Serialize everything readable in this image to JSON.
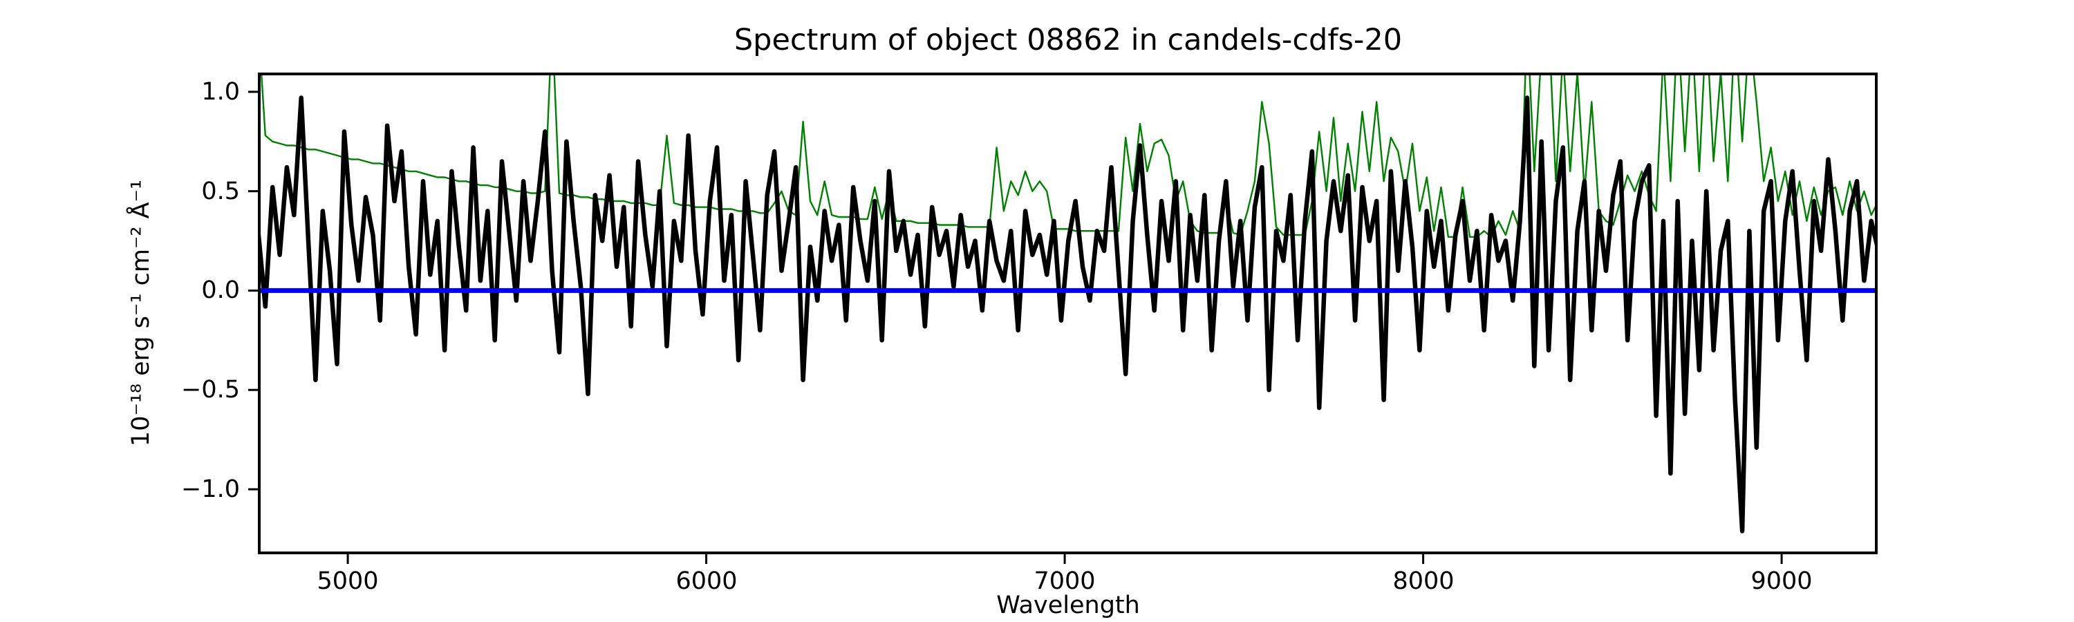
{
  "chart_data": {
    "type": "line",
    "title": "Spectrum of object 08862 in candels-cdfs-20",
    "xlabel": "Wavelength",
    "ylabel": "10⁻¹⁸ erg s⁻¹ cm⁻² Å⁻¹",
    "xlim": [
      4753,
      9264
    ],
    "ylim": [
      -1.32,
      1.09
    ],
    "grid": false,
    "legend": null,
    "xticks": {
      "values": [
        5000,
        6000,
        7000,
        8000,
        9000
      ],
      "labels": [
        "5000",
        "6000",
        "7000",
        "8000",
        "9000"
      ]
    },
    "yticks": {
      "values": [
        1.0,
        0.5,
        0.0,
        -0.5,
        -1.0
      ],
      "labels": [
        "1.0",
        "0.5",
        "0.0",
        "−0.5",
        "−1.0"
      ]
    },
    "x_start": 4750,
    "x_step": 20,
    "series": [
      {
        "name": "flux",
        "type": "line",
        "color": "#000000",
        "linewidth": 6.5,
        "values": [
          0.3,
          -0.08,
          0.52,
          0.18,
          0.62,
          0.38,
          0.97,
          0.25,
          -0.45,
          0.4,
          0.1,
          -0.37,
          0.8,
          0.33,
          0.05,
          0.47,
          0.28,
          -0.15,
          0.83,
          0.45,
          0.7,
          0.12,
          -0.22,
          0.55,
          0.08,
          0.35,
          -0.3,
          0.6,
          0.22,
          -0.1,
          0.72,
          0.05,
          0.4,
          -0.25,
          0.65,
          0.3,
          -0.05,
          0.55,
          0.15,
          0.45,
          0.8,
          0.1,
          -0.31,
          0.75,
          0.35,
          0.02,
          -0.52,
          0.48,
          0.25,
          0.58,
          0.12,
          0.42,
          -0.18,
          0.65,
          0.28,
          0.02,
          0.5,
          -0.28,
          0.35,
          0.15,
          0.78,
          0.2,
          -0.12,
          0.45,
          0.72,
          0.05,
          0.38,
          -0.35,
          0.55,
          0.18,
          -0.2,
          0.48,
          0.7,
          0.1,
          0.35,
          0.62,
          -0.45,
          0.22,
          -0.05,
          0.4,
          0.15,
          0.33,
          -0.15,
          0.52,
          0.25,
          0.05,
          0.45,
          -0.25,
          0.6,
          0.2,
          0.35,
          0.08,
          0.28,
          -0.18,
          0.42,
          0.18,
          0.3,
          0.02,
          0.38,
          0.12,
          0.25,
          -0.1,
          0.35,
          0.15,
          0.05,
          0.3,
          -0.2,
          0.4,
          0.18,
          0.28,
          0.08,
          0.35,
          -0.15,
          0.25,
          0.45,
          0.12,
          -0.05,
          0.3,
          0.2,
          0.62,
          0.1,
          -0.42,
          0.35,
          0.73,
          0.28,
          -0.1,
          0.45,
          0.15,
          0.55,
          -0.2,
          0.38,
          0.05,
          0.48,
          -0.3,
          0.25,
          0.55,
          0.02,
          0.35,
          -0.15,
          0.42,
          0.62,
          -0.5,
          0.3,
          0.15,
          0.48,
          -0.25,
          0.35,
          0.7,
          -0.59,
          0.25,
          0.55,
          0.3,
          0.58,
          -0.15,
          0.52,
          0.25,
          0.45,
          -0.55,
          0.6,
          0.1,
          0.55,
          0.22,
          -0.3,
          0.4,
          0.12,
          0.35,
          -0.1,
          0.28,
          0.45,
          0.05,
          0.3,
          -0.2,
          0.38,
          0.15,
          0.25,
          -0.05,
          0.35,
          0.97,
          -0.38,
          0.75,
          -0.3,
          0.45,
          0.72,
          -0.45,
          0.3,
          0.55,
          -0.2,
          0.4,
          0.1,
          0.48,
          0.65,
          -0.25,
          0.35,
          0.55,
          0.63,
          -0.63,
          0.35,
          -0.92,
          0.45,
          -0.62,
          0.25,
          -0.4,
          0.5,
          -0.3,
          0.2,
          0.35,
          -0.55,
          -1.21,
          0.3,
          -0.79,
          0.4,
          0.55,
          -0.25,
          0.35,
          0.6,
          0.1,
          -0.35,
          0.45,
          0.2,
          0.66,
          0.3,
          -0.15,
          0.4,
          0.55,
          0.05,
          0.35,
          0.2
        ]
      },
      {
        "name": "error",
        "type": "line",
        "color": "#008000",
        "linewidth": 2.4,
        "values": [
          1.35,
          0.78,
          0.75,
          0.74,
          0.73,
          0.73,
          0.72,
          0.71,
          0.71,
          0.7,
          0.69,
          0.68,
          0.67,
          0.66,
          0.66,
          0.65,
          0.64,
          0.64,
          0.63,
          0.62,
          0.61,
          0.6,
          0.6,
          0.59,
          0.58,
          0.57,
          0.57,
          0.56,
          0.55,
          0.55,
          0.54,
          0.53,
          0.53,
          0.52,
          0.52,
          0.51,
          0.5,
          0.5,
          0.49,
          0.49,
          0.5,
          1.35,
          0.49,
          0.48,
          0.48,
          0.47,
          0.47,
          0.46,
          0.46,
          0.45,
          0.45,
          0.45,
          0.44,
          0.44,
          0.44,
          0.43,
          0.43,
          0.78,
          0.44,
          0.43,
          0.43,
          0.42,
          0.42,
          0.42,
          0.41,
          0.41,
          0.41,
          0.4,
          0.4,
          0.4,
          0.39,
          0.39,
          0.44,
          0.5,
          0.4,
          0.38,
          0.85,
          0.45,
          0.38,
          0.55,
          0.38,
          0.37,
          0.37,
          0.37,
          0.36,
          0.36,
          0.52,
          0.36,
          0.5,
          0.35,
          0.35,
          0.35,
          0.34,
          0.34,
          0.34,
          0.33,
          0.33,
          0.33,
          0.33,
          0.32,
          0.32,
          0.32,
          0.32,
          0.72,
          0.4,
          0.55,
          0.48,
          0.6,
          0.5,
          0.55,
          0.5,
          0.31,
          0.31,
          0.31,
          0.3,
          0.3,
          0.3,
          0.3,
          0.3,
          0.3,
          0.3,
          0.77,
          0.5,
          0.84,
          0.6,
          0.74,
          0.76,
          0.68,
          0.45,
          0.55,
          0.35,
          0.3,
          0.29,
          0.29,
          0.29,
          0.45,
          0.29,
          0.28,
          0.4,
          0.55,
          0.95,
          0.74,
          0.32,
          0.28,
          0.28,
          0.28,
          0.28,
          0.45,
          0.8,
          0.5,
          0.87,
          0.45,
          0.74,
          0.5,
          0.9,
          0.6,
          0.95,
          0.55,
          0.77,
          0.7,
          0.5,
          0.74,
          0.4,
          0.57,
          0.3,
          0.52,
          0.27,
          0.27,
          0.52,
          0.27,
          0.27,
          0.3,
          0.27,
          0.35,
          0.28,
          0.4,
          0.3,
          1.35,
          0.6,
          1.2,
          1.35,
          0.55,
          1.2,
          0.6,
          1.1,
          0.5,
          0.95,
          0.4,
          0.35,
          0.33,
          0.45,
          0.58,
          0.5,
          0.6,
          0.48,
          0.4,
          1.2,
          0.55,
          1.35,
          0.7,
          1.3,
          0.6,
          1.35,
          0.65,
          1.1,
          0.55,
          1.35,
          0.75,
          1.3,
          0.95,
          0.55,
          0.72,
          0.45,
          0.6,
          0.38,
          0.55,
          0.35,
          0.52,
          0.38,
          0.5,
          0.52,
          0.38,
          0.55,
          0.4,
          0.5,
          0.38,
          0.45
        ]
      },
      {
        "name": "zero-line",
        "type": "hline",
        "color": "#0000ff",
        "linewidth": 7,
        "value": 0
      }
    ]
  }
}
